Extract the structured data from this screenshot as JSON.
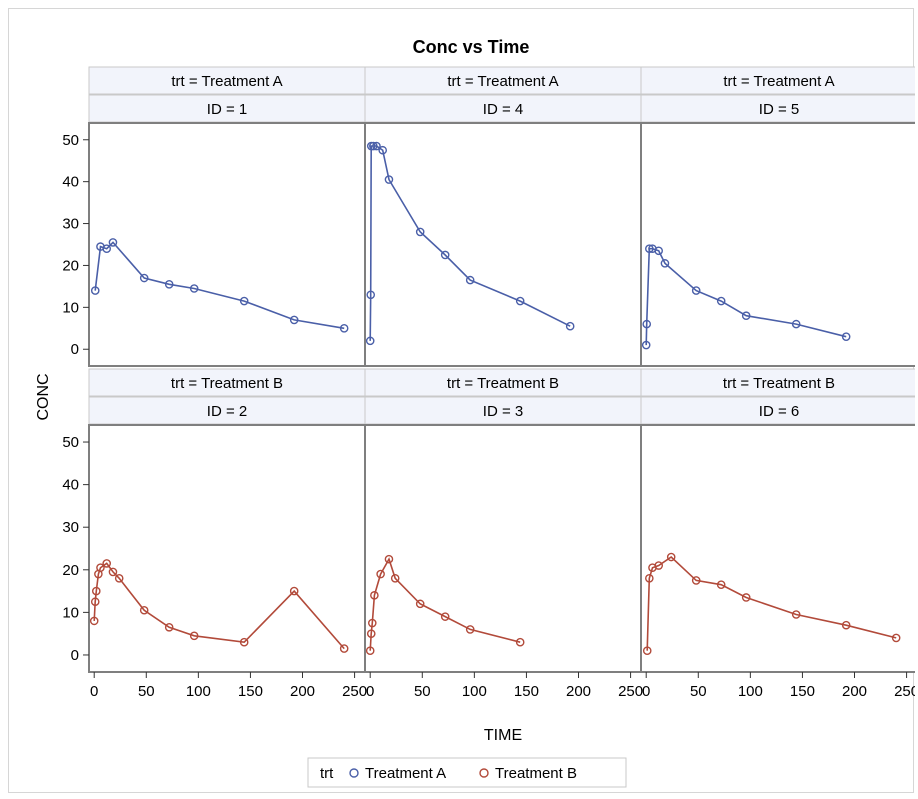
{
  "chart_data": {
    "type": "line",
    "title": "Conc vs Time",
    "xlabel": "TIME",
    "ylabel": "CONC",
    "xlim": [
      -5,
      260
    ],
    "ylim": [
      -4,
      54
    ],
    "xticks": [
      0,
      50,
      100,
      150,
      200,
      250
    ],
    "yticks": [
      0,
      10,
      20,
      30,
      40,
      50
    ],
    "legend": {
      "title": "trt",
      "position": "bottom-center",
      "entries": [
        {
          "label": "Treatment A",
          "color": "#4a5fa8"
        },
        {
          "label": "Treatment B",
          "color": "#b24a3a"
        }
      ]
    },
    "panels": [
      {
        "header1": "trt = Treatment A",
        "header2": "ID = 1",
        "group": "Treatment A",
        "x": [
          1,
          6,
          12,
          18,
          48,
          72,
          96,
          144,
          192,
          240
        ],
        "y": [
          14,
          24.5,
          24,
          25.5,
          17,
          15.5,
          14.5,
          11.5,
          7,
          5
        ]
      },
      {
        "header1": "trt = Treatment A",
        "header2": "ID = 4",
        "group": "Treatment A",
        "x": [
          0,
          0.5,
          1,
          3,
          6,
          12,
          18,
          48,
          72,
          96,
          144,
          192
        ],
        "y": [
          2,
          13,
          48.5,
          48.5,
          48.5,
          47.5,
          40.5,
          28,
          22.5,
          16.5,
          11.5,
          5.5
        ]
      },
      {
        "header1": "trt = Treatment A",
        "header2": "ID = 5",
        "group": "Treatment A",
        "x": [
          0,
          0.5,
          3,
          6,
          12,
          18,
          48,
          72,
          96,
          144,
          192
        ],
        "y": [
          1,
          6,
          24,
          24,
          23.5,
          20.5,
          14,
          11.5,
          8,
          6,
          3
        ]
      },
      {
        "header1": "trt = Treatment B",
        "header2": "ID = 2",
        "group": "Treatment B",
        "x": [
          0,
          1,
          2,
          4,
          6,
          12,
          18,
          24,
          48,
          72,
          96,
          144,
          192,
          240
        ],
        "y": [
          8,
          12.5,
          15,
          19,
          20.5,
          21.5,
          19.5,
          18,
          10.5,
          6.5,
          4.5,
          3,
          15,
          1.5
        ]
      },
      {
        "header1": "trt = Treatment B",
        "header2": "ID = 3",
        "group": "Treatment B",
        "x": [
          0,
          1,
          2,
          4,
          10,
          18,
          24,
          48,
          72,
          96,
          144
        ],
        "y": [
          1,
          5,
          7.5,
          14,
          19,
          22.5,
          18,
          12,
          9,
          6,
          3
        ]
      },
      {
        "header1": "trt = Treatment B",
        "header2": "ID = 6",
        "group": "Treatment B",
        "x": [
          1,
          3,
          6,
          12,
          24,
          48,
          72,
          96,
          144,
          192,
          240
        ],
        "y": [
          1,
          18,
          20.5,
          21,
          23,
          17.5,
          16.5,
          13.5,
          9.5,
          7,
          4
        ]
      }
    ]
  }
}
